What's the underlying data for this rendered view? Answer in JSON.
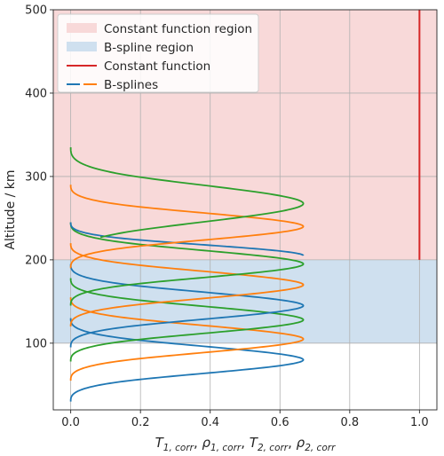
{
  "chart_data": {
    "type": "line",
    "title": "",
    "xlabel": "T₁,corr, ρ₁,corr, T₂,corr, ρ₂,corr",
    "xlabel_parts": [
      {
        "base": "T",
        "sub": "1, corr"
      },
      {
        "base": "ρ",
        "sub": "1, corr"
      },
      {
        "base": "T",
        "sub": "2, corr"
      },
      {
        "base": "ρ",
        "sub": "2, corr"
      }
    ],
    "ylabel": "Altitude / km",
    "xlim": [
      -0.05,
      1.05
    ],
    "ylim": [
      20,
      500
    ],
    "xticks": [
      0.0,
      0.2,
      0.4,
      0.6,
      0.8,
      1.0
    ],
    "xtick_labels": [
      "0.0",
      "0.2",
      "0.4",
      "0.6",
      "0.8",
      "1.0"
    ],
    "yticks": [
      100,
      200,
      300,
      400,
      500
    ],
    "ytick_labels": [
      "100",
      "200",
      "300",
      "400",
      "500"
    ],
    "grid": true,
    "legend_position": "top-left",
    "regions": [
      {
        "name": "Constant function region",
        "y_range": [
          200,
          500
        ],
        "color": "#f8d9d9"
      },
      {
        "name": "B-spline region",
        "y_range": [
          100,
          200
        ],
        "color": "#cfe0ef"
      }
    ],
    "constant_function": {
      "name": "Constant function",
      "x": 1.0,
      "y_range": [
        200,
        500
      ],
      "color": "#d62728"
    },
    "bspline_legend_label": "B-splines",
    "series": [
      {
        "color": "#1f77b4",
        "support": [
          30,
          130
        ],
        "peak": 0.667
      },
      {
        "color": "#ff7f0e",
        "support": [
          55,
          155
        ],
        "peak": 0.667
      },
      {
        "color": "#2ca02c",
        "support": [
          78,
          178
        ],
        "peak": 0.667
      },
      {
        "color": "#1f77b4",
        "support": [
          95,
          195
        ],
        "peak": 0.667
      },
      {
        "color": "#ff7f0e",
        "support": [
          120,
          220
        ],
        "peak": 0.667
      },
      {
        "color": "#2ca02c",
        "support": [
          145,
          245
        ],
        "peak": 0.667
      },
      {
        "color": "#1f77b4",
        "support": [
          165,
          245
        ],
        "peak": 0.667,
        "truncate": [
          0.5,
          1.0
        ]
      },
      {
        "color": "#ff7f0e",
        "support": [
          190,
          290
        ],
        "peak": 0.667
      },
      {
        "color": "#2ca02c",
        "support": [
          200,
          335
        ],
        "peak": 0.667,
        "truncate": [
          0.2,
          1.0
        ]
      }
    ]
  }
}
